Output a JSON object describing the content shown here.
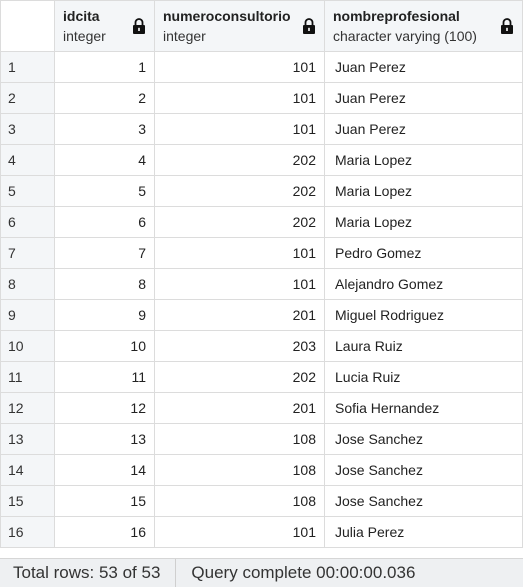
{
  "columns": [
    {
      "name": "idcita",
      "type": "integer",
      "icon": "lock-icon"
    },
    {
      "name": "numeroconsultorio",
      "type": "integer",
      "icon": "lock-icon"
    },
    {
      "name": "nombreprofesional",
      "type": "character varying (100)",
      "icon": "lock-icon"
    }
  ],
  "rows": [
    {
      "rn": "1",
      "idcita": "1",
      "numeroconsultorio": "101",
      "nombreprofesional": "Juan Perez"
    },
    {
      "rn": "2",
      "idcita": "2",
      "numeroconsultorio": "101",
      "nombreprofesional": "Juan Perez"
    },
    {
      "rn": "3",
      "idcita": "3",
      "numeroconsultorio": "101",
      "nombreprofesional": "Juan Perez"
    },
    {
      "rn": "4",
      "idcita": "4",
      "numeroconsultorio": "202",
      "nombreprofesional": "Maria Lopez"
    },
    {
      "rn": "5",
      "idcita": "5",
      "numeroconsultorio": "202",
      "nombreprofesional": "Maria Lopez"
    },
    {
      "rn": "6",
      "idcita": "6",
      "numeroconsultorio": "202",
      "nombreprofesional": "Maria Lopez"
    },
    {
      "rn": "7",
      "idcita": "7",
      "numeroconsultorio": "101",
      "nombreprofesional": "Pedro Gomez"
    },
    {
      "rn": "8",
      "idcita": "8",
      "numeroconsultorio": "101",
      "nombreprofesional": "Alejandro Gomez"
    },
    {
      "rn": "9",
      "idcita": "9",
      "numeroconsultorio": "201",
      "nombreprofesional": "Miguel Rodriguez"
    },
    {
      "rn": "10",
      "idcita": "10",
      "numeroconsultorio": "203",
      "nombreprofesional": "Laura Ruiz"
    },
    {
      "rn": "11",
      "idcita": "11",
      "numeroconsultorio": "202",
      "nombreprofesional": "Lucia Ruiz"
    },
    {
      "rn": "12",
      "idcita": "12",
      "numeroconsultorio": "201",
      "nombreprofesional": "Sofia Hernandez"
    },
    {
      "rn": "13",
      "idcita": "13",
      "numeroconsultorio": "108",
      "nombreprofesional": "Jose Sanchez"
    },
    {
      "rn": "14",
      "idcita": "14",
      "numeroconsultorio": "108",
      "nombreprofesional": "Jose Sanchez"
    },
    {
      "rn": "15",
      "idcita": "15",
      "numeroconsultorio": "108",
      "nombreprofesional": "Jose Sanchez"
    },
    {
      "rn": "16",
      "idcita": "16",
      "numeroconsultorio": "101",
      "nombreprofesional": "Julia Perez"
    }
  ],
  "status": {
    "total_rows": "Total rows: 53 of 53",
    "query": "Query complete 00:00:00.036"
  }
}
